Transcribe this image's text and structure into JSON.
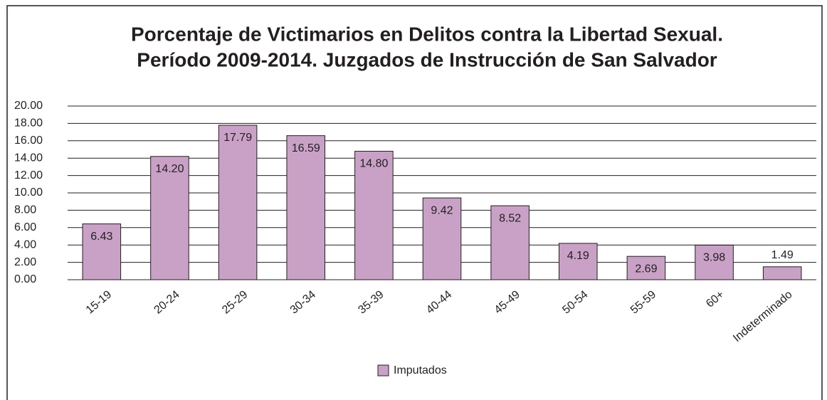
{
  "chart_data": {
    "type": "bar",
    "title": [
      "Porcentaje de Victimarios en Delitos contra la Libertad Sexual.",
      "Período 2009-2014. Juzgados de Instrucción de San Salvador"
    ],
    "categories": [
      "15-19",
      "20-24",
      "25-29",
      "30-34",
      "35-39",
      "40-44",
      "45-49",
      "50-54",
      "55-59",
      "60+",
      "Indeterminado"
    ],
    "series": [
      {
        "name": "Imputados",
        "color": "#c9a1c6",
        "values": [
          6.43,
          14.2,
          17.79,
          16.59,
          14.8,
          9.42,
          8.52,
          4.19,
          2.69,
          3.98,
          1.49
        ],
        "value_labels": [
          "6.43",
          "14.20",
          "17.79",
          "16.59",
          "14.80",
          "9.42",
          "8.52",
          "4.19",
          "2.69",
          "3.98",
          "1.49"
        ]
      }
    ],
    "ylim": [
      0,
      20
    ],
    "yticks": [
      {
        "value": 0,
        "label": "0.00"
      },
      {
        "value": 2,
        "label": "2.00"
      },
      {
        "value": 4,
        "label": "4.00"
      },
      {
        "value": 6,
        "label": "6.00"
      },
      {
        "value": 8,
        "label": "8.00"
      },
      {
        "value": 10,
        "label": "10.00"
      },
      {
        "value": 12,
        "label": "12.00"
      },
      {
        "value": 14,
        "label": "14.00"
      },
      {
        "value": 16,
        "label": "16.00"
      },
      {
        "value": 18,
        "label": "18.00"
      },
      {
        "value": 20,
        "label": "20.00"
      }
    ],
    "grid": true,
    "legend": "bottom"
  }
}
